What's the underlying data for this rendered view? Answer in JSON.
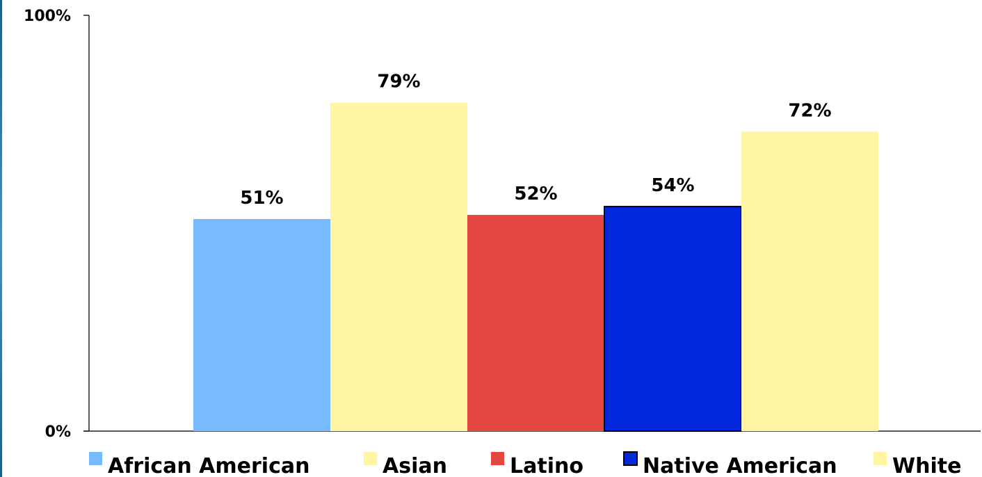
{
  "chart_data": {
    "type": "bar",
    "categories": [
      "African American",
      "Asian",
      "Latino",
      "Native American",
      "White"
    ],
    "values": [
      51,
      79,
      52,
      54,
      72
    ],
    "value_labels": [
      "51%",
      "79%",
      "52%",
      "54%",
      "72%"
    ],
    "colors": [
      "#78baff",
      "#fff5a3",
      "#e44640",
      "#0428dc",
      "#fff5a3"
    ],
    "bar_outlines": [
      "none",
      "none",
      "none",
      "#000000",
      "none"
    ],
    "y_ticks": [
      {
        "value": 0,
        "label": "0%"
      },
      {
        "value": 100,
        "label": "100%"
      }
    ],
    "ylim": [
      0,
      100
    ],
    "grid": false,
    "legend_position": "bottom",
    "title": "",
    "xlabel": "",
    "ylabel": ""
  }
}
